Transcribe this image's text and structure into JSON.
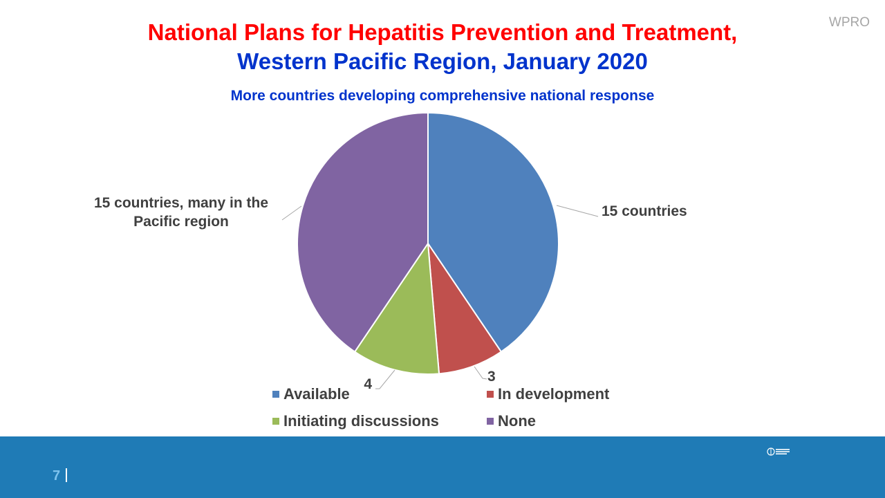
{
  "watermark": "WPRO",
  "title_line1": "National Plans for Hepatitis Prevention and Treatment,",
  "title_line2": "Western Pacific Region, January 2020",
  "page_number": "7",
  "chart_data": {
    "type": "pie",
    "title": "National Plans for Hepatitis Prevention and Treatment, Western Pacific Region, January 2020",
    "subtitle": "More countries developing comprehensive national response",
    "legend_position": "bottom",
    "categories": [
      "Available",
      "In development",
      "Initiating discussions",
      "None"
    ],
    "values": [
      15,
      3,
      4,
      15
    ],
    "data_labels": [
      "15 countries",
      "3",
      "4",
      "15 countries, many in the Pacific region"
    ],
    "colors": [
      "#4f81bd",
      "#c0504d",
      "#9bbb59",
      "#8064a2"
    ]
  }
}
